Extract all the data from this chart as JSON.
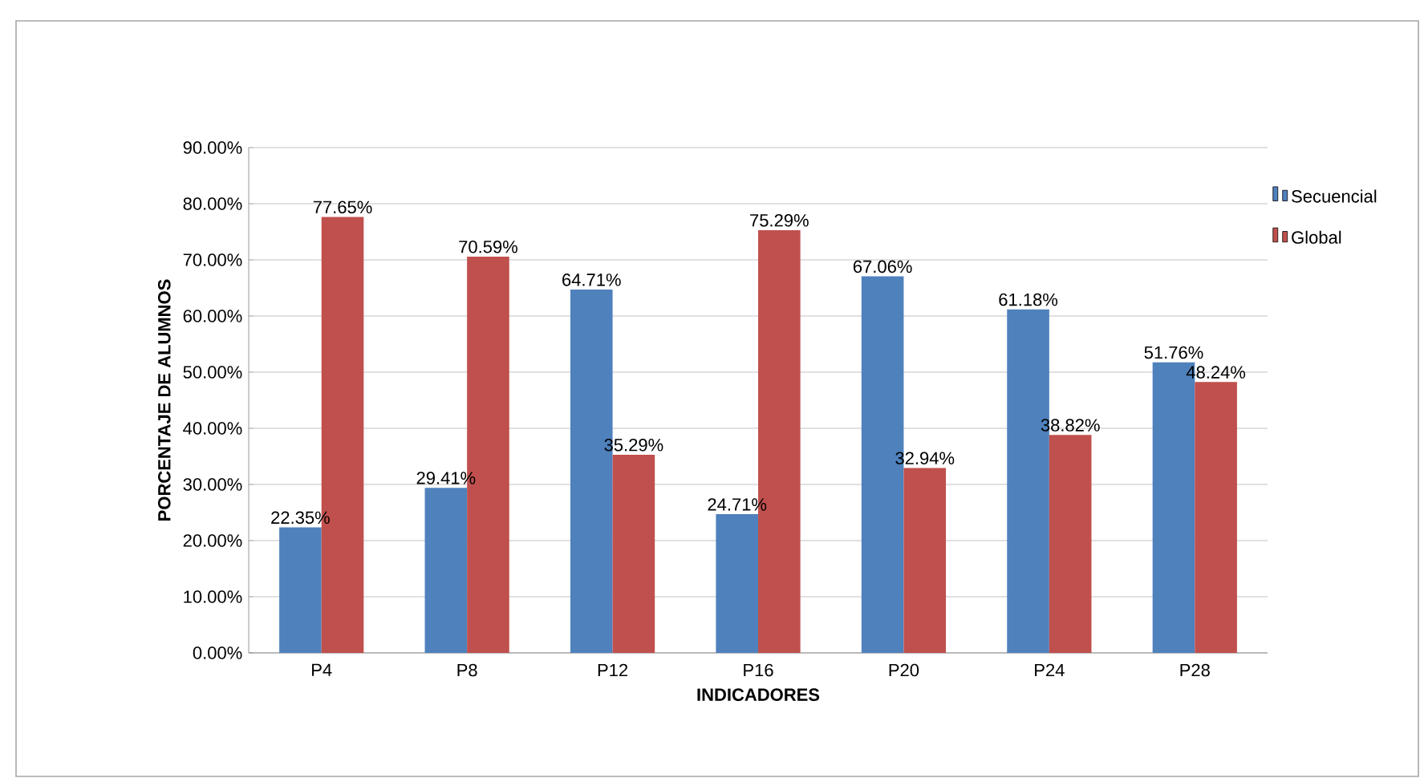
{
  "chart_data": {
    "type": "bar",
    "xlabel": "INDICADORES",
    "ylabel": "PORCENTAJE DE ALUMNOS",
    "categories": [
      "P4",
      "P8",
      "P12",
      "P16",
      "P20",
      "P24",
      "P28"
    ],
    "series": [
      {
        "name": "Secuencial",
        "color": "#4f81bd",
        "values": [
          22.35,
          29.41,
          64.71,
          24.71,
          67.06,
          61.18,
          51.76
        ],
        "value_labels": [
          "22.35%",
          "29.41%",
          "64.71%",
          "24.71%",
          "67.06%",
          "61.18%",
          "51.76%"
        ]
      },
      {
        "name": "Global",
        "color": "#c0504d",
        "values": [
          77.65,
          70.59,
          35.29,
          75.29,
          32.94,
          38.82,
          48.24
        ],
        "value_labels": [
          "77.65%",
          "70.59%",
          "35.29%",
          "75.29%",
          "32.94%",
          "38.82%",
          "48.24%"
        ]
      }
    ],
    "ylim": [
      0,
      90
    ],
    "yticks": [
      {
        "value": 0,
        "label": "0.00%"
      },
      {
        "value": 10,
        "label": "10.00%"
      },
      {
        "value": 20,
        "label": "20.00%"
      },
      {
        "value": 30,
        "label": "30.00%"
      },
      {
        "value": 40,
        "label": "40.00%"
      },
      {
        "value": 50,
        "label": "50.00%"
      },
      {
        "value": 60,
        "label": "60.00%"
      },
      {
        "value": 70,
        "label": "70.00%"
      },
      {
        "value": 80,
        "label": "80.00%"
      },
      {
        "value": 90,
        "label": "90.00%"
      }
    ],
    "grid": "y",
    "legend": "right"
  }
}
